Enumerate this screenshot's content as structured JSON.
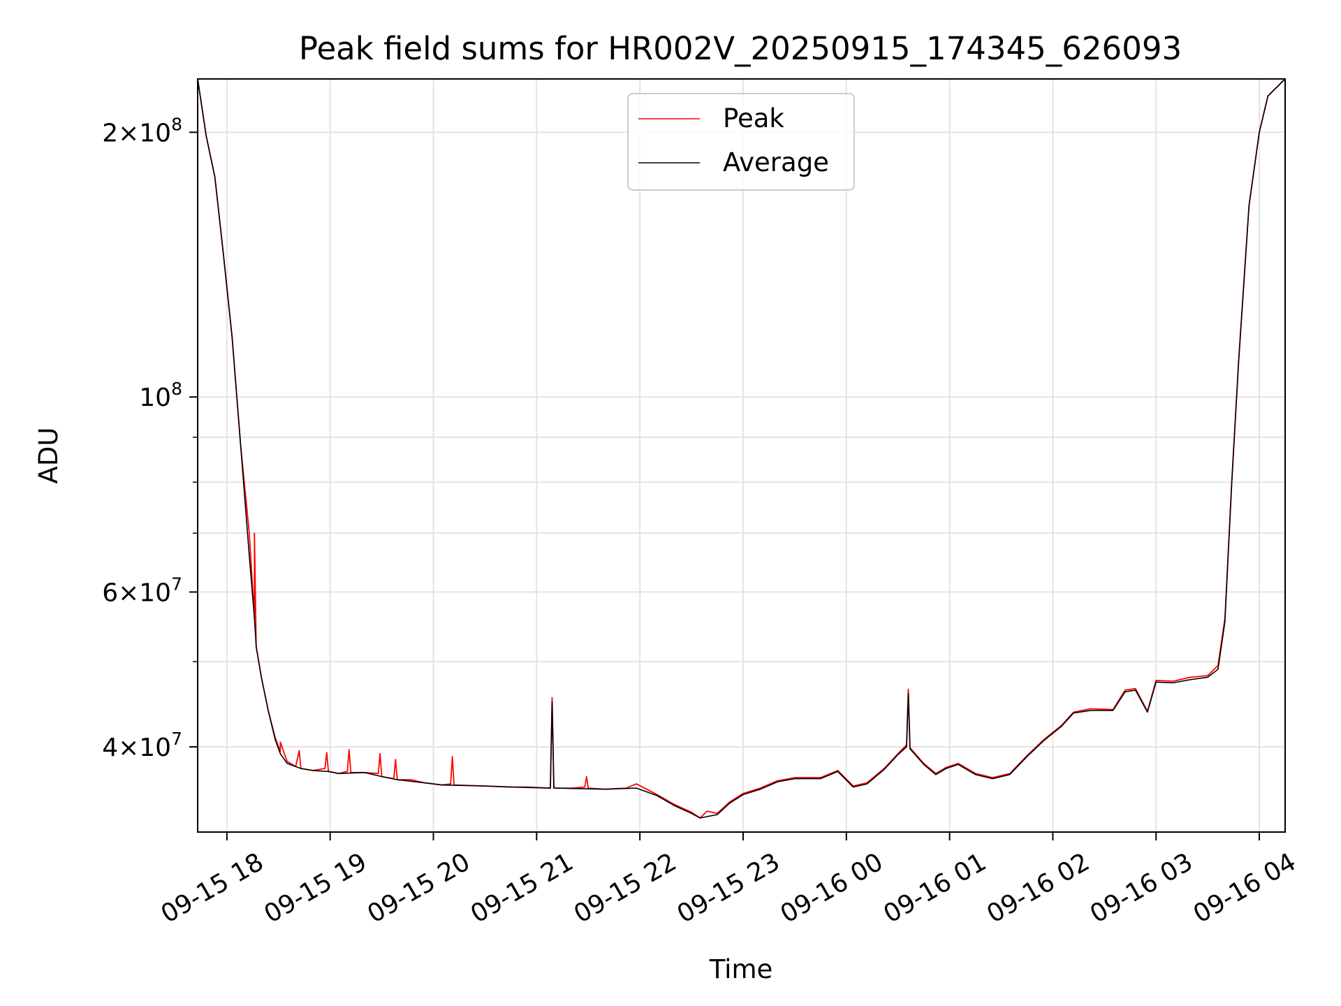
{
  "chart_data": {
    "type": "line",
    "title": "Peak field sums for HR002V_20250915_174345_626093",
    "xlabel": "Time",
    "ylabel": "ADU",
    "y_scale": "log",
    "ylim": [
      32000000,
      230000000
    ],
    "xlim": [
      "2025-09-15 17:43",
      "2025-09-16 04:15"
    ],
    "grid": true,
    "legend_position": "top-center",
    "x_ticks": [
      {
        "t": "2025-09-15 18:00",
        "label": "09-15 18"
      },
      {
        "t": "2025-09-15 19:00",
        "label": "09-15 19"
      },
      {
        "t": "2025-09-15 20:00",
        "label": "09-15 20"
      },
      {
        "t": "2025-09-15 21:00",
        "label": "09-15 21"
      },
      {
        "t": "2025-09-15 22:00",
        "label": "09-15 22"
      },
      {
        "t": "2025-09-15 23:00",
        "label": "09-15 23"
      },
      {
        "t": "2025-09-16 00:00",
        "label": "09-16 00"
      },
      {
        "t": "2025-09-16 01:00",
        "label": "09-16 01"
      },
      {
        "t": "2025-09-16 02:00",
        "label": "09-16 02"
      },
      {
        "t": "2025-09-16 03:00",
        "label": "09-16 03"
      },
      {
        "t": "2025-09-16 04:00",
        "label": "09-16 04"
      }
    ],
    "y_major_ticks": [
      {
        "value": 40000000,
        "mant": "4",
        "exp": "7"
      },
      {
        "value": 60000000,
        "mant": "6",
        "exp": "7"
      },
      {
        "value": 100000000,
        "mant": "",
        "exp": "8"
      },
      {
        "value": 200000000,
        "mant": "2",
        "exp": "8"
      }
    ],
    "y_minor_ticks": [
      50000000,
      70000000,
      80000000,
      90000000
    ],
    "series": [
      {
        "name": "Peak",
        "color": "#ff0000",
        "points": [
          [
            "2025-09-15 17:43",
            230000000
          ],
          [
            "2025-09-15 17:48",
            198000000
          ],
          [
            "2025-09-15 17:53",
            178000000
          ],
          [
            "2025-09-15 17:58",
            145000000
          ],
          [
            "2025-09-15 18:03",
            117000000
          ],
          [
            "2025-09-15 18:08",
            88000000
          ],
          [
            "2025-09-15 18:13",
            70000000
          ],
          [
            "2025-09-15 18:16",
            56000000
          ],
          [
            "2025-09-15 18:16",
            70000000
          ],
          [
            "2025-09-15 18:17",
            52000000
          ],
          [
            "2025-09-15 18:20",
            48000000
          ],
          [
            "2025-09-15 18:24",
            44000000
          ],
          [
            "2025-09-15 18:28",
            41000000
          ],
          [
            "2025-09-15 18:31",
            39500000
          ],
          [
            "2025-09-15 18:31",
            40500000
          ],
          [
            "2025-09-15 18:35",
            38500000
          ],
          [
            "2025-09-15 18:40",
            38000000
          ],
          [
            "2025-09-15 18:42",
            39600000
          ],
          [
            "2025-09-15 18:43",
            37800000
          ],
          [
            "2025-09-15 18:50",
            37600000
          ],
          [
            "2025-09-15 18:57",
            37800000
          ],
          [
            "2025-09-15 18:58",
            39400000
          ],
          [
            "2025-09-15 18:59",
            37500000
          ],
          [
            "2025-09-15 19:05",
            37300000
          ],
          [
            "2025-09-15 19:10",
            37500000
          ],
          [
            "2025-09-15 19:11",
            39700000
          ],
          [
            "2025-09-15 19:12",
            37400000
          ],
          [
            "2025-09-15 19:20",
            37400000
          ],
          [
            "2025-09-15 19:28",
            37300000
          ],
          [
            "2025-09-15 19:29",
            39300000
          ],
          [
            "2025-09-15 19:30",
            37000000
          ],
          [
            "2025-09-15 19:37",
            36800000
          ],
          [
            "2025-09-15 19:38",
            38700000
          ],
          [
            "2025-09-15 19:39",
            36700000
          ],
          [
            "2025-09-15 19:47",
            36700000
          ],
          [
            "2025-09-15 19:55",
            36400000
          ],
          [
            "2025-09-15 20:05",
            36200000
          ],
          [
            "2025-09-15 20:10",
            36300000
          ],
          [
            "2025-09-15 20:11",
            39000000
          ],
          [
            "2025-09-15 20:12",
            36200000
          ],
          [
            "2025-09-15 20:30",
            36100000
          ],
          [
            "2025-09-15 20:45",
            36000000
          ],
          [
            "2025-09-15 20:55",
            36000000
          ],
          [
            "2025-09-15 21:08",
            35900000
          ],
          [
            "2025-09-15 21:09",
            45500000
          ],
          [
            "2025-09-15 21:10",
            35900000
          ],
          [
            "2025-09-15 21:20",
            35900000
          ],
          [
            "2025-09-15 21:28",
            36000000
          ],
          [
            "2025-09-15 21:29",
            37000000
          ],
          [
            "2025-09-15 21:30",
            35900000
          ],
          [
            "2025-09-15 21:40",
            35800000
          ],
          [
            "2025-09-15 21:52",
            35900000
          ],
          [
            "2025-09-15 21:58",
            36300000
          ],
          [
            "2025-09-15 22:10",
            35300000
          ],
          [
            "2025-09-15 22:20",
            34400000
          ],
          [
            "2025-09-15 22:30",
            33700000
          ],
          [
            "2025-09-15 22:35",
            33200000
          ],
          [
            "2025-09-15 22:39",
            33800000
          ],
          [
            "2025-09-15 22:45",
            33600000
          ],
          [
            "2025-09-15 22:52",
            34600000
          ],
          [
            "2025-09-15 23:00",
            35400000
          ],
          [
            "2025-09-15 23:10",
            35900000
          ],
          [
            "2025-09-15 23:20",
            36600000
          ],
          [
            "2025-09-15 23:30",
            36900000
          ],
          [
            "2025-09-15 23:45",
            36900000
          ],
          [
            "2025-09-15 23:55",
            37600000
          ],
          [
            "2025-09-16 00:04",
            36100000
          ],
          [
            "2025-09-16 00:12",
            36400000
          ],
          [
            "2025-09-16 00:22",
            37800000
          ],
          [
            "2025-09-16 00:30",
            39300000
          ],
          [
            "2025-09-16 00:35",
            40200000
          ],
          [
            "2025-09-16 00:36",
            46500000
          ],
          [
            "2025-09-16 00:37",
            39900000
          ],
          [
            "2025-09-16 00:45",
            38300000
          ],
          [
            "2025-09-16 00:52",
            37300000
          ],
          [
            "2025-09-16 00:58",
            37900000
          ],
          [
            "2025-09-16 01:05",
            38300000
          ],
          [
            "2025-09-16 01:15",
            37300000
          ],
          [
            "2025-09-16 01:25",
            36900000
          ],
          [
            "2025-09-16 01:35",
            37300000
          ],
          [
            "2025-09-16 01:45",
            39100000
          ],
          [
            "2025-09-16 01:55",
            40800000
          ],
          [
            "2025-09-16 02:05",
            42300000
          ],
          [
            "2025-09-16 02:12",
            43800000
          ],
          [
            "2025-09-16 02:22",
            44200000
          ],
          [
            "2025-09-16 02:35",
            44100000
          ],
          [
            "2025-09-16 02:42",
            46400000
          ],
          [
            "2025-09-16 02:48",
            46600000
          ],
          [
            "2025-09-16 02:55",
            43900000
          ],
          [
            "2025-09-16 03:00",
            47600000
          ],
          [
            "2025-09-16 03:10",
            47500000
          ],
          [
            "2025-09-16 03:20",
            48000000
          ],
          [
            "2025-09-16 03:30",
            48200000
          ],
          [
            "2025-09-16 03:36",
            49500000
          ],
          [
            "2025-09-16 03:40",
            56000000
          ],
          [
            "2025-09-16 03:44",
            80000000
          ],
          [
            "2025-09-16 03:48",
            110000000
          ],
          [
            "2025-09-16 03:54",
            165000000
          ],
          [
            "2025-09-16 04:00",
            200000000
          ],
          [
            "2025-09-16 04:05",
            220000000
          ],
          [
            "2025-09-16 04:15",
            230000000
          ]
        ]
      },
      {
        "name": "Average",
        "color": "#000000",
        "points": [
          [
            "2025-09-15 17:43",
            230000000
          ],
          [
            "2025-09-15 17:48",
            198000000
          ],
          [
            "2025-09-15 17:53",
            178000000
          ],
          [
            "2025-09-15 17:58",
            145000000
          ],
          [
            "2025-09-15 18:03",
            117000000
          ],
          [
            "2025-09-15 18:08",
            88000000
          ],
          [
            "2025-09-15 18:13",
            66000000
          ],
          [
            "2025-09-15 18:16",
            56000000
          ],
          [
            "2025-09-15 18:17",
            52000000
          ],
          [
            "2025-09-15 18:20",
            48000000
          ],
          [
            "2025-09-15 18:24",
            44000000
          ],
          [
            "2025-09-15 18:28",
            40800000
          ],
          [
            "2025-09-15 18:31",
            39300000
          ],
          [
            "2025-09-15 18:35",
            38300000
          ],
          [
            "2025-09-15 18:43",
            37800000
          ],
          [
            "2025-09-15 18:50",
            37600000
          ],
          [
            "2025-09-15 18:59",
            37500000
          ],
          [
            "2025-09-15 19:05",
            37300000
          ],
          [
            "2025-09-15 19:20",
            37400000
          ],
          [
            "2025-09-15 19:30",
            37000000
          ],
          [
            "2025-09-15 19:39",
            36700000
          ],
          [
            "2025-09-15 19:55",
            36400000
          ],
          [
            "2025-09-15 20:05",
            36200000
          ],
          [
            "2025-09-15 20:30",
            36100000
          ],
          [
            "2025-09-15 20:45",
            36000000
          ],
          [
            "2025-09-15 21:08",
            35900000
          ],
          [
            "2025-09-15 21:09",
            45000000
          ],
          [
            "2025-09-15 21:10",
            35900000
          ],
          [
            "2025-09-15 21:40",
            35800000
          ],
          [
            "2025-09-15 21:58",
            35900000
          ],
          [
            "2025-09-15 22:10",
            35200000
          ],
          [
            "2025-09-15 22:20",
            34300000
          ],
          [
            "2025-09-15 22:30",
            33600000
          ],
          [
            "2025-09-15 22:35",
            33200000
          ],
          [
            "2025-09-15 22:45",
            33500000
          ],
          [
            "2025-09-15 22:52",
            34500000
          ],
          [
            "2025-09-15 23:00",
            35300000
          ],
          [
            "2025-09-15 23:10",
            35800000
          ],
          [
            "2025-09-15 23:20",
            36500000
          ],
          [
            "2025-09-15 23:30",
            36800000
          ],
          [
            "2025-09-15 23:45",
            36800000
          ],
          [
            "2025-09-15 23:55",
            37500000
          ],
          [
            "2025-09-16 00:04",
            36000000
          ],
          [
            "2025-09-16 00:12",
            36300000
          ],
          [
            "2025-09-16 00:22",
            37700000
          ],
          [
            "2025-09-16 00:30",
            39200000
          ],
          [
            "2025-09-16 00:35",
            40000000
          ],
          [
            "2025-09-16 00:36",
            46000000
          ],
          [
            "2025-09-16 00:37",
            39800000
          ],
          [
            "2025-09-16 00:45",
            38200000
          ],
          [
            "2025-09-16 00:52",
            37200000
          ],
          [
            "2025-09-16 00:58",
            37800000
          ],
          [
            "2025-09-16 01:05",
            38200000
          ],
          [
            "2025-09-16 01:15",
            37200000
          ],
          [
            "2025-09-16 01:25",
            36800000
          ],
          [
            "2025-09-16 01:35",
            37200000
          ],
          [
            "2025-09-16 01:45",
            39000000
          ],
          [
            "2025-09-16 01:55",
            40700000
          ],
          [
            "2025-09-16 02:05",
            42200000
          ],
          [
            "2025-09-16 02:12",
            43700000
          ],
          [
            "2025-09-16 02:22",
            44000000
          ],
          [
            "2025-09-16 02:35",
            44000000
          ],
          [
            "2025-09-16 02:42",
            46200000
          ],
          [
            "2025-09-16 02:48",
            46400000
          ],
          [
            "2025-09-16 02:55",
            43800000
          ],
          [
            "2025-09-16 03:00",
            47400000
          ],
          [
            "2025-09-16 03:10",
            47300000
          ],
          [
            "2025-09-16 03:20",
            47700000
          ],
          [
            "2025-09-16 03:30",
            48000000
          ],
          [
            "2025-09-16 03:36",
            49000000
          ],
          [
            "2025-09-16 03:40",
            55500000
          ],
          [
            "2025-09-16 03:44",
            80000000
          ],
          [
            "2025-09-16 03:48",
            110000000
          ],
          [
            "2025-09-16 03:54",
            165000000
          ],
          [
            "2025-09-16 04:00",
            200000000
          ],
          [
            "2025-09-16 04:05",
            220000000
          ],
          [
            "2025-09-16 04:15",
            230000000
          ]
        ]
      }
    ]
  }
}
